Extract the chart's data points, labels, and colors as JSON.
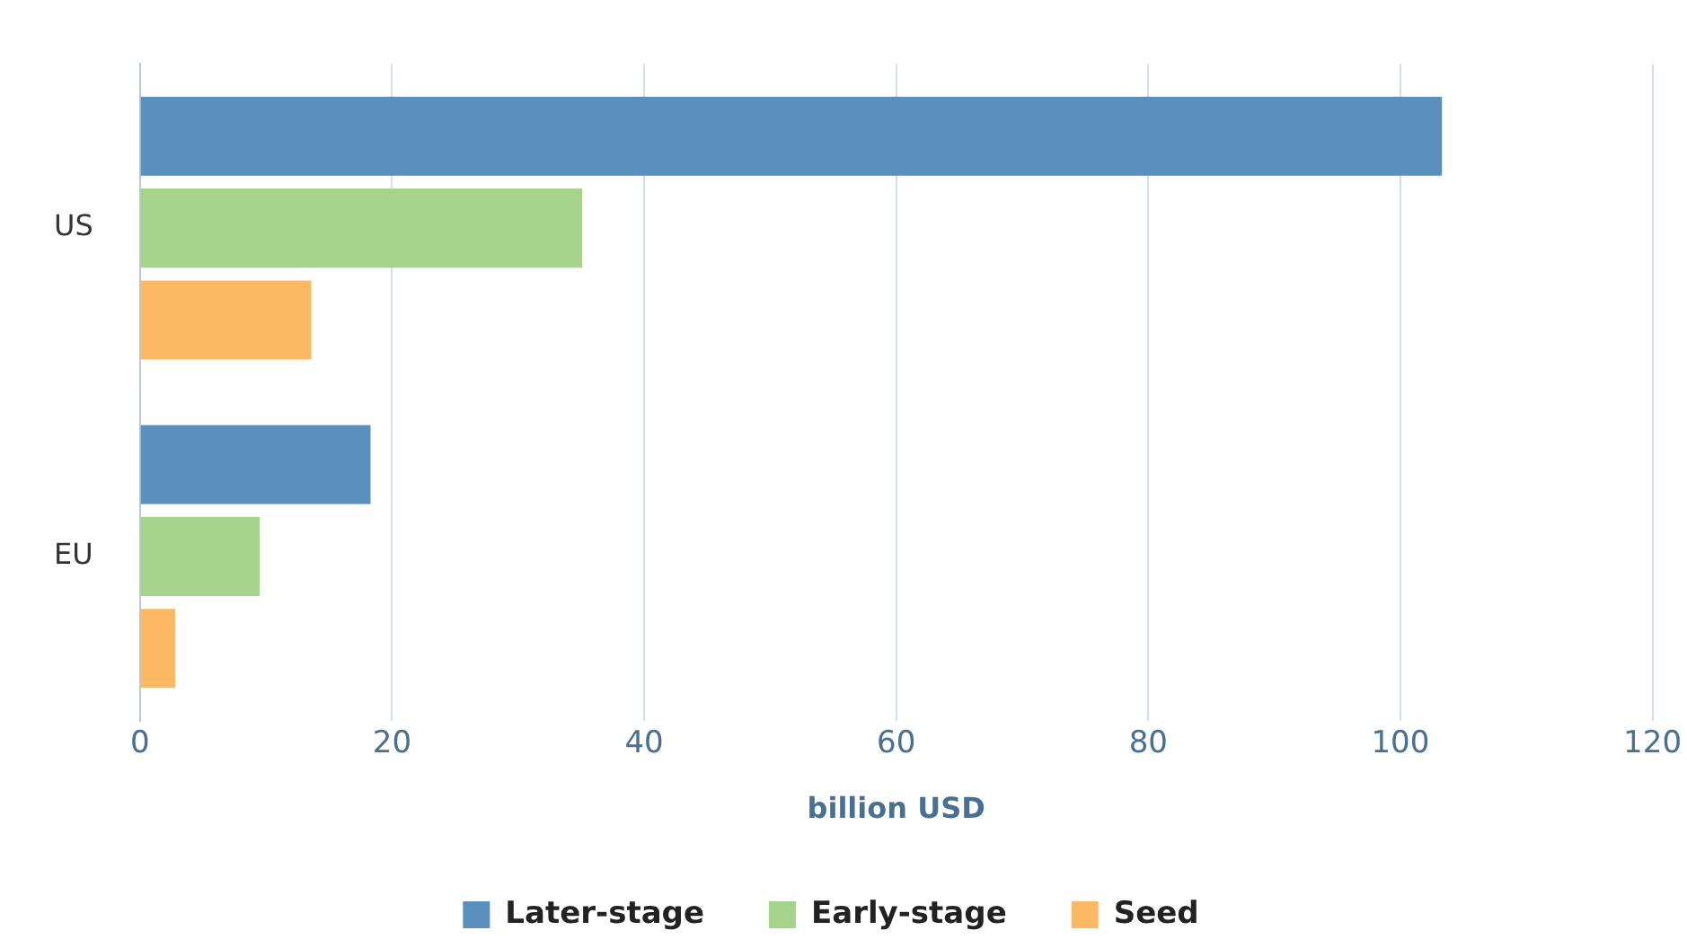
{
  "chart_data": {
    "type": "bar",
    "orientation": "horizontal",
    "xlabel": "billion USD",
    "categories": [
      "US",
      "EU"
    ],
    "series": [
      {
        "name": "Later-stage",
        "color": "#5b8fbe",
        "values": [
          103.3,
          18.3
        ]
      },
      {
        "name": "Early-stage",
        "color": "#a6d38b",
        "values": [
          35.1,
          9.5
        ]
      },
      {
        "name": "Seed",
        "color": "#fdb863",
        "values": [
          13.6,
          2.8
        ]
      }
    ],
    "xlim": [
      0,
      120
    ],
    "xticks": [
      0,
      20,
      40,
      60,
      80,
      100,
      120
    ],
    "grid": "x",
    "legend": "bottom"
  }
}
